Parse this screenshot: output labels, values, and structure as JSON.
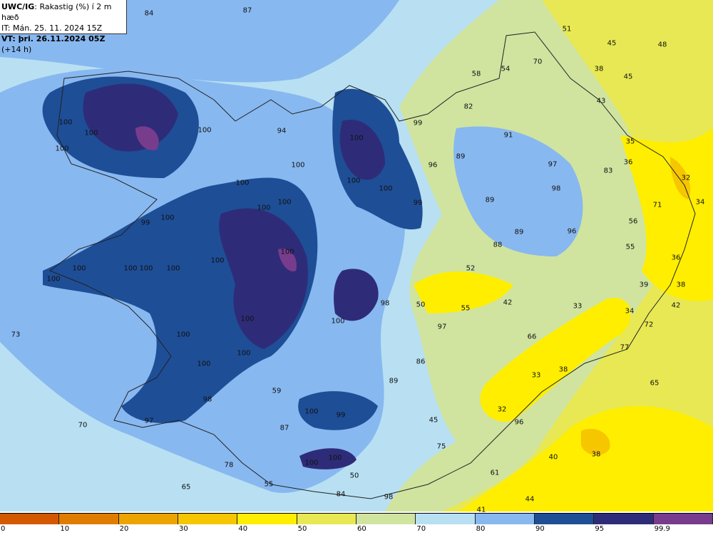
{
  "header": {
    "model": "UWC/IG",
    "title": ": Rakastig (%) í 2 m hæð",
    "init_time": "IT: Mán. 25. 11. 2024 15Z",
    "valid_label": "VT: þri. 26.11.2024 05Z",
    "lead": " (+14 h)"
  },
  "colorbar": {
    "ticks": [
      "0",
      "10",
      "20",
      "30",
      "40",
      "50",
      "60",
      "70",
      "80",
      "90",
      "95",
      "99.9"
    ],
    "colors": [
      "#d45800",
      "#e07c00",
      "#eca400",
      "#f6c600",
      "#ffee00",
      "#e8e854",
      "#d0e4a0",
      "#b8e0f2",
      "#88b8f0",
      "#1e4e96",
      "#2e2c78",
      "#783c8c"
    ]
  },
  "value_labels": [
    "84",
    "87",
    "51",
    "45",
    "48",
    "58",
    "54",
    "70",
    "38",
    "45",
    "43",
    "82",
    "91",
    "89",
    "35",
    "36",
    "83",
    "32",
    "97",
    "98",
    "89",
    "71",
    "34",
    "56",
    "89",
    "96",
    "88",
    "55",
    "52",
    "36",
    "39",
    "38",
    "42",
    "33",
    "34",
    "42",
    "72",
    "50",
    "55",
    "97",
    "66",
    "77",
    "86",
    "89",
    "33",
    "38",
    "65",
    "59",
    "45",
    "32",
    "96",
    "75",
    "40",
    "38",
    "61",
    "44",
    "41",
    "84",
    "98",
    "50",
    "55",
    "65",
    "78",
    "87",
    "70",
    "73",
    "100",
    "100",
    "100",
    "100",
    "100",
    "100",
    "100",
    "100",
    "100",
    "100",
    "100",
    "100",
    "100",
    "100",
    "100",
    "100",
    "100",
    "100",
    "100",
    "100",
    "100",
    "100",
    "100",
    "100",
    "100",
    "100",
    "99",
    "99",
    "99",
    "97",
    "98",
    "99",
    "96",
    "94",
    "98",
    "100"
  ]
}
